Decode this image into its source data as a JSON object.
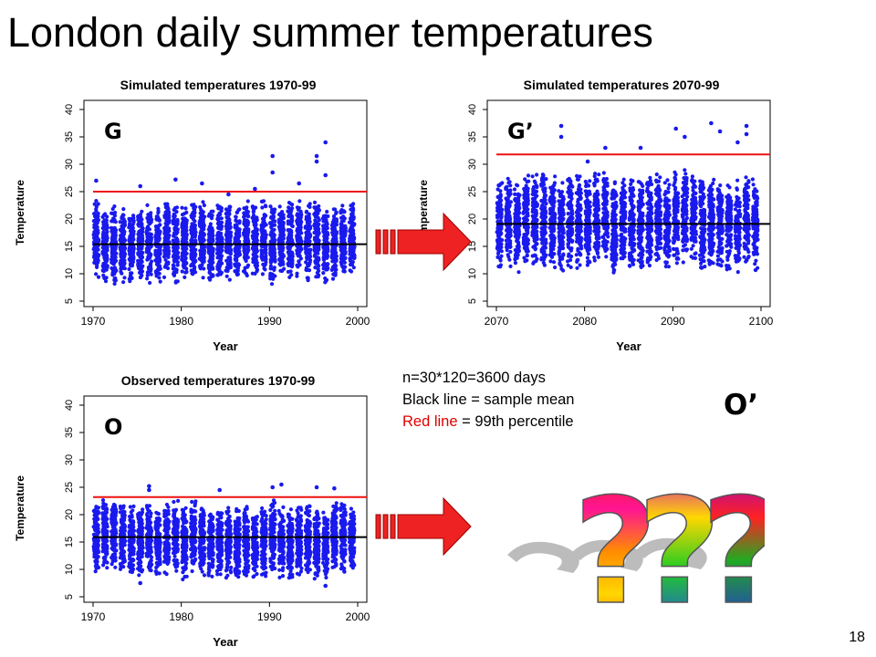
{
  "slide": {
    "title": "London daily summer temperatures",
    "page_number": "18"
  },
  "notes": {
    "n_label": "n=30*120=3600 days",
    "black_line": "Black line = sample mean",
    "red_line_prefix": "Red line",
    "red_line_suffix": " = 99th percentile",
    "o_prime": "O’",
    "question_marks": "???"
  },
  "colors": {
    "points": "#1a1aee",
    "mean_line": "#000000",
    "percentile_line": "#ee1111",
    "arrow": "#ee2222",
    "arrow_outline": "#990000"
  },
  "chart_data": [
    {
      "type": "scatter",
      "title": "Simulated temperatures 1970-99",
      "corner_label": "G",
      "xlabel": "Year",
      "ylabel": "Temperature",
      "xlim": [
        1970,
        2000
      ],
      "ylim": [
        5,
        40
      ],
      "xticks": [
        1970,
        1980,
        1990,
        2000
      ],
      "yticks": [
        5,
        10,
        15,
        20,
        25,
        30,
        35,
        40
      ],
      "mean_line": 15.4,
      "percentile_99_line": 25.0,
      "series": [
        {
          "points_summary": "120 summer days per year, 1970-1999",
          "year_start": 1970,
          "year_end": 1999,
          "typical_low": 9,
          "typical_high": 23,
          "outliers": [
            [
              1970,
              27.0
            ],
            [
              1975,
              26.0
            ],
            [
              1979,
              27.2
            ],
            [
              1982,
              26.5
            ],
            [
              1985,
              24.5
            ],
            [
              1988,
              25.5
            ],
            [
              1990,
              31.5
            ],
            [
              1990,
              28.5
            ],
            [
              1993,
              26.5
            ],
            [
              1995,
              31.5
            ],
            [
              1995,
              30.5
            ],
            [
              1996,
              34.0
            ],
            [
              1996,
              28.0
            ]
          ]
        }
      ]
    },
    {
      "type": "scatter",
      "title": "Simulated temperatures 2070-99",
      "corner_label": "G’",
      "xlabel": "Year",
      "ylabel": "Temperature",
      "xlim": [
        2070,
        2100
      ],
      "ylim": [
        5,
        40
      ],
      "xticks": [
        2070,
        2080,
        2090,
        2100
      ],
      "yticks": [
        5,
        10,
        15,
        20,
        25,
        30,
        35,
        40
      ],
      "mean_line": 19.1,
      "percentile_99_line": 31.8,
      "series": [
        {
          "points_summary": "120 summer days per year, 2070-2099",
          "year_start": 2070,
          "year_end": 2099,
          "typical_low": 11,
          "typical_high": 28,
          "outliers": [
            [
              2077,
              37.0
            ],
            [
              2077,
              35.0
            ],
            [
              2082,
              33.0
            ],
            [
              2086,
              33.0
            ],
            [
              2090,
              36.5
            ],
            [
              2091,
              35.0
            ],
            [
              2094,
              37.5
            ],
            [
              2095,
              36.0
            ],
            [
              2097,
              34.0
            ],
            [
              2098,
              37.0
            ],
            [
              2098,
              35.5
            ],
            [
              2080,
              30.5
            ]
          ]
        }
      ]
    },
    {
      "type": "scatter",
      "title": "Observed temperatures 1970-99",
      "corner_label": "O",
      "xlabel": "Year",
      "ylabel": "Temperature",
      "xlim": [
        1970,
        2000
      ],
      "ylim": [
        5,
        40
      ],
      "xticks": [
        1970,
        1980,
        1990,
        2000
      ],
      "yticks": [
        5,
        10,
        15,
        20,
        25,
        30,
        35,
        40
      ],
      "mean_line": 15.9,
      "percentile_99_line": 23.2,
      "series": [
        {
          "points_summary": "120 summer days per year, 1970-1999",
          "year_start": 1970,
          "year_end": 1999,
          "typical_low": 9,
          "typical_high": 22,
          "outliers": [
            [
              1976,
              25.2
            ],
            [
              1976,
              24.5
            ],
            [
              1984,
              24.5
            ],
            [
              1990,
              25.0
            ],
            [
              1991,
              25.5
            ],
            [
              1995,
              25.0
            ],
            [
              1997,
              24.8
            ],
            [
              1996,
              7.0
            ],
            [
              1975,
              7.5
            ]
          ]
        }
      ]
    }
  ]
}
